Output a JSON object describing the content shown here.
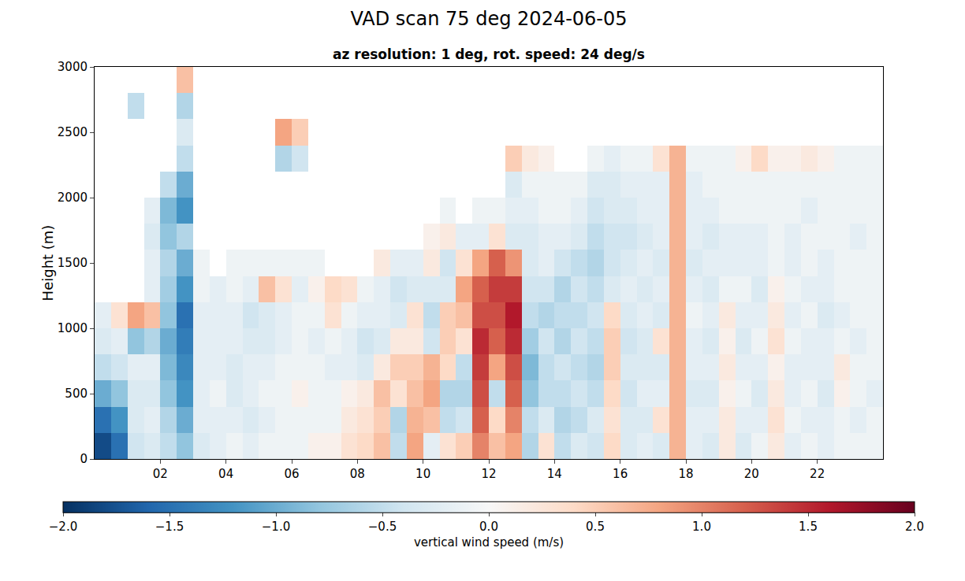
{
  "chart_data": {
    "type": "heatmap",
    "title": "VAD scan 75 deg 2024-06-05",
    "subtitle": "az resolution: 1 deg, rot. speed: 24 deg/s",
    "y_label": "Height (m)",
    "x": [
      0.25,
      0.75,
      1.25,
      1.75,
      2.25,
      2.75,
      3.25,
      3.75,
      4.25,
      4.75,
      5.25,
      5.75,
      6.25,
      6.75,
      7.25,
      7.75,
      8.25,
      8.75,
      9.25,
      9.75,
      10.25,
      10.75,
      11.25,
      11.75,
      12.25,
      12.75,
      13.25,
      13.75,
      14.25,
      14.75,
      15.25,
      15.75,
      16.25,
      16.75,
      17.25,
      17.75,
      18.25,
      18.75,
      19.25,
      19.75,
      20.25,
      20.75,
      21.25,
      21.75,
      22.25,
      22.75,
      23.25,
      23.75
    ],
    "y": [
      100,
      300,
      500,
      700,
      900,
      1100,
      1300,
      1500,
      1700,
      1900,
      2100,
      2300,
      2500,
      2700,
      2900
    ],
    "z": [
      [
        -1.8,
        -1.5,
        -1.0,
        -0.5,
        -0.3,
        -0.2,
        null,
        null,
        null,
        null,
        null,
        null,
        null,
        null,
        null
      ],
      [
        -1.5,
        -1.2,
        -0.8,
        -0.4,
        -0.2,
        0.3,
        null,
        null,
        null,
        null,
        null,
        null,
        null,
        null,
        null
      ],
      [
        -0.4,
        -0.3,
        -0.3,
        -0.2,
        -0.8,
        0.8,
        null,
        null,
        null,
        null,
        null,
        null,
        null,
        -0.5,
        null
      ],
      [
        -0.3,
        -0.2,
        -0.3,
        -0.2,
        -0.6,
        0.6,
        -0.2,
        -0.2,
        -0.3,
        -0.2,
        null,
        null,
        null,
        null,
        null
      ],
      [
        -0.5,
        -0.6,
        -0.8,
        -0.9,
        -1.0,
        -0.8,
        -0.7,
        -0.6,
        -0.8,
        -0.9,
        -0.5,
        null,
        null,
        null,
        null
      ],
      [
        -0.8,
        -1.0,
        -1.2,
        -1.3,
        -1.4,
        -1.5,
        -1.2,
        -1.0,
        -0.6,
        -1.2,
        -1.0,
        -0.5,
        -0.3,
        -0.6,
        0.6
      ],
      [
        -0.3,
        -0.2,
        -0.2,
        -0.2,
        -0.2,
        -0.2,
        -0.1,
        -0.1,
        null,
        null,
        null,
        null,
        null,
        null,
        null
      ],
      [
        -0.2,
        -0.2,
        -0.1,
        -0.2,
        -0.2,
        -0.2,
        -0.2,
        null,
        null,
        null,
        null,
        null,
        null,
        null,
        null
      ],
      [
        -0.1,
        -0.2,
        -0.3,
        -0.3,
        -0.2,
        -0.2,
        -0.1,
        -0.1,
        null,
        null,
        null,
        null,
        null,
        null,
        null
      ],
      [
        -0.2,
        -0.3,
        -0.2,
        -0.2,
        -0.3,
        -0.4,
        -0.2,
        -0.1,
        null,
        null,
        null,
        null,
        null,
        null,
        null
      ],
      [
        -0.1,
        -0.2,
        -0.1,
        -0.2,
        -0.3,
        -0.3,
        0.6,
        -0.1,
        null,
        null,
        null,
        null,
        null,
        null,
        null
      ],
      [
        -0.1,
        -0.1,
        -0.1,
        -0.1,
        -0.2,
        -0.2,
        0.3,
        -0.1,
        null,
        null,
        null,
        -0.6,
        0.8,
        null,
        null
      ],
      [
        -0.1,
        -0.1,
        0.1,
        -0.1,
        -0.1,
        -0.1,
        -0.2,
        -0.1,
        null,
        null,
        null,
        -0.4,
        0.5,
        null,
        null
      ],
      [
        0.1,
        -0.1,
        -0.1,
        -0.1,
        -0.2,
        -0.1,
        0.1,
        -0.1,
        null,
        null,
        null,
        null,
        null,
        null,
        null
      ],
      [
        0.1,
        -0.1,
        -0.1,
        -0.2,
        -0.1,
        0.3,
        0.4,
        null,
        null,
        null,
        null,
        null,
        null,
        null,
        null
      ],
      [
        0.3,
        0.2,
        0.1,
        -0.2,
        -0.2,
        -0.1,
        0.3,
        null,
        null,
        null,
        null,
        null,
        null,
        null,
        null
      ],
      [
        0.4,
        0.3,
        0.2,
        -0.3,
        -0.4,
        -0.2,
        -0.1,
        null,
        null,
        null,
        null,
        null,
        null,
        null,
        null
      ],
      [
        0.6,
        0.5,
        0.6,
        0.2,
        -0.3,
        -0.2,
        -0.2,
        0.2,
        null,
        null,
        null,
        null,
        null,
        null,
        null
      ],
      [
        -0.5,
        -0.6,
        0.3,
        0.5,
        0.2,
        -0.3,
        -0.4,
        -0.2,
        null,
        null,
        null,
        null,
        null,
        null,
        null
      ],
      [
        0.8,
        0.7,
        0.6,
        0.5,
        0.2,
        0.3,
        -0.3,
        -0.2,
        null,
        null,
        null,
        null,
        null,
        null,
        null
      ],
      [
        -0.2,
        0.6,
        0.8,
        0.7,
        -0.4,
        -0.5,
        -0.3,
        0.2,
        0.1,
        null,
        null,
        null,
        null,
        null,
        null
      ],
      [
        0.3,
        -0.5,
        -0.6,
        0.4,
        0.5,
        0.5,
        -0.3,
        -0.4,
        0.2,
        -0.1,
        null,
        null,
        null,
        null,
        null
      ],
      [
        0.5,
        -0.4,
        -0.6,
        -0.5,
        0.3,
        0.6,
        0.8,
        0.3,
        -0.2,
        null,
        null,
        null,
        null,
        null,
        null
      ],
      [
        1.0,
        1.2,
        1.3,
        1.4,
        1.5,
        1.3,
        1.2,
        0.8,
        -0.2,
        -0.1,
        null,
        null,
        null,
        null,
        null
      ],
      [
        0.6,
        0.4,
        -0.5,
        0.8,
        1.2,
        1.3,
        1.4,
        1.2,
        0.3,
        -0.1,
        null,
        null,
        null,
        null,
        null
      ],
      [
        0.8,
        1.0,
        1.2,
        1.3,
        1.5,
        1.6,
        1.4,
        0.9,
        -0.3,
        -0.2,
        -0.3,
        0.5,
        null,
        null,
        null
      ],
      [
        -0.6,
        -0.5,
        -0.8,
        -0.9,
        -0.7,
        -0.5,
        -0.4,
        -0.3,
        -0.3,
        -0.2,
        -0.1,
        0.2,
        null,
        null,
        null
      ],
      [
        0.3,
        -0.3,
        -0.5,
        -0.5,
        -0.4,
        -0.6,
        -0.4,
        -0.2,
        -0.2,
        -0.1,
        -0.1,
        0.1,
        null,
        null,
        null
      ],
      [
        -0.5,
        -0.6,
        -0.5,
        -0.4,
        -0.6,
        -0.5,
        -0.6,
        -0.4,
        -0.2,
        -0.1,
        -0.1,
        null,
        null,
        null,
        null
      ],
      [
        -0.3,
        -0.5,
        -0.4,
        -0.5,
        -0.4,
        -0.5,
        -0.4,
        -0.5,
        -0.3,
        -0.2,
        -0.1,
        null,
        null,
        null,
        null
      ],
      [
        -0.4,
        -0.3,
        -0.5,
        -0.6,
        -0.5,
        -0.4,
        -0.5,
        -0.6,
        -0.5,
        -0.4,
        -0.3,
        -0.1,
        null,
        null,
        null
      ],
      [
        0.4,
        0.3,
        0.4,
        0.5,
        0.5,
        0.4,
        -0.3,
        -0.4,
        -0.4,
        -0.3,
        -0.3,
        -0.2,
        null,
        null,
        null
      ],
      [
        -0.3,
        -0.3,
        -0.4,
        -0.3,
        -0.4,
        -0.3,
        -0.2,
        -0.3,
        -0.4,
        -0.3,
        -0.2,
        -0.1,
        null,
        null,
        null
      ],
      [
        -0.2,
        -0.3,
        -0.2,
        -0.3,
        -0.3,
        -0.2,
        -0.3,
        -0.2,
        -0.3,
        -0.2,
        -0.2,
        -0.1,
        null,
        null,
        null
      ],
      [
        -0.3,
        0.3,
        -0.2,
        -0.3,
        0.3,
        -0.3,
        -0.2,
        -0.3,
        -0.2,
        -0.2,
        -0.2,
        0.3,
        null,
        null,
        null
      ],
      [
        0.7,
        0.7,
        0.7,
        0.7,
        0.7,
        0.7,
        0.7,
        0.7,
        0.7,
        0.7,
        0.7,
        0.7,
        null,
        null,
        null
      ],
      [
        -0.2,
        -0.2,
        -0.3,
        -0.2,
        -0.2,
        -0.1,
        -0.2,
        -0.3,
        -0.2,
        -0.2,
        -0.2,
        -0.1,
        null,
        null,
        null
      ],
      [
        -0.3,
        -0.2,
        -0.3,
        -0.2,
        -0.3,
        -0.2,
        -0.3,
        -0.2,
        -0.3,
        -0.2,
        -0.1,
        -0.1,
        null,
        null,
        null
      ],
      [
        0.2,
        0.2,
        0.1,
        0.2,
        0.1,
        0.2,
        -0.1,
        -0.2,
        -0.2,
        -0.1,
        -0.1,
        -0.1,
        null,
        null,
        null
      ],
      [
        -0.3,
        -0.2,
        -0.1,
        -0.2,
        -0.3,
        -0.2,
        -0.1,
        -0.2,
        -0.2,
        -0.1,
        -0.1,
        0.1,
        null,
        null,
        null
      ],
      [
        -0.1,
        -0.2,
        -0.3,
        -0.2,
        -0.1,
        -0.2,
        -0.3,
        -0.2,
        -0.2,
        -0.1,
        -0.1,
        0.4,
        null,
        null,
        null
      ],
      [
        0.2,
        0.3,
        0.2,
        0.1,
        0.3,
        0.2,
        0.1,
        -0.1,
        -0.1,
        -0.1,
        -0.1,
        0.1,
        null,
        null,
        null
      ],
      [
        -0.2,
        -0.1,
        -0.2,
        -0.2,
        -0.1,
        -0.2,
        -0.1,
        -0.2,
        -0.2,
        -0.1,
        -0.1,
        0.1,
        null,
        null,
        null
      ],
      [
        -0.1,
        -0.2,
        -0.1,
        -0.2,
        -0.2,
        -0.1,
        -0.2,
        -0.1,
        -0.1,
        -0.2,
        -0.1,
        0.2,
        null,
        null,
        null
      ],
      [
        -0.2,
        -0.2,
        -0.3,
        -0.2,
        -0.2,
        -0.3,
        -0.2,
        -0.2,
        -0.1,
        -0.1,
        -0.1,
        0.1,
        null,
        null,
        null
      ],
      [
        -0.1,
        -0.1,
        0.1,
        0.2,
        -0.1,
        -0.2,
        -0.1,
        -0.1,
        -0.1,
        -0.1,
        -0.1,
        -0.1,
        null,
        null,
        null
      ],
      [
        -0.1,
        -0.2,
        -0.1,
        -0.1,
        -0.2,
        -0.1,
        -0.1,
        -0.1,
        -0.2,
        -0.1,
        -0.1,
        -0.1,
        null,
        null,
        null
      ],
      [
        -0.1,
        -0.1,
        -0.2,
        -0.1,
        -0.1,
        -0.1,
        -0.1,
        -0.1,
        -0.1,
        -0.1,
        -0.1,
        -0.1,
        null,
        null,
        null
      ]
    ],
    "xlim": [
      0,
      24
    ],
    "xticks": [
      {
        "value": 2,
        "label": "02"
      },
      {
        "value": 4,
        "label": "04"
      },
      {
        "value": 6,
        "label": "06"
      },
      {
        "value": 8,
        "label": "08"
      },
      10,
      12,
      14,
      16,
      18,
      20,
      22
    ],
    "ylim": [
      0,
      3000
    ],
    "yticks": [
      0,
      500,
      1000,
      1500,
      2000,
      2500,
      3000
    ],
    "colorbar": {
      "label": "vertical wind speed (m/s)",
      "range": [
        -2,
        2
      ],
      "ticks": [
        {
          "value": -2,
          "label": "−2.0"
        },
        {
          "value": -1.5,
          "label": "−1.5"
        },
        {
          "value": -1,
          "label": "−1.0"
        },
        {
          "value": -0.5,
          "label": "−0.5"
        },
        {
          "value": 0,
          "label": "0.0"
        },
        {
          "value": 0.5,
          "label": "0.5"
        },
        {
          "value": 1,
          "label": "1.0"
        },
        {
          "value": 1.5,
          "label": "1.5"
        },
        {
          "value": 2,
          "label": "2.0"
        }
      ]
    },
    "grid": false
  }
}
